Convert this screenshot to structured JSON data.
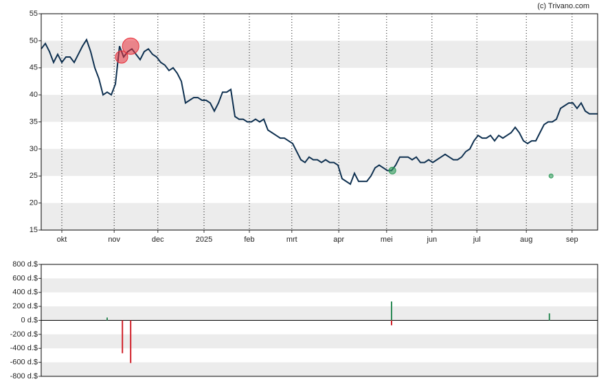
{
  "chart_data": [
    {
      "type": "line",
      "source": "(c) Trivano.com",
      "xlim": [
        0,
        135
      ],
      "xticks": [
        {
          "value": 5,
          "label": "okt"
        },
        {
          "value": 17.7,
          "label": "nov"
        },
        {
          "value": 28.3,
          "label": "dec"
        },
        {
          "value": 39.5,
          "label": "2025"
        },
        {
          "value": 50.5,
          "label": "feb"
        },
        {
          "value": 60.8,
          "label": "mrt"
        },
        {
          "value": 72.2,
          "label": "apr"
        },
        {
          "value": 83.8,
          "label": "mei"
        },
        {
          "value": 94.8,
          "label": "jun"
        },
        {
          "value": 105.7,
          "label": "jul"
        },
        {
          "value": 117.7,
          "label": "aug"
        },
        {
          "value": 128.8,
          "label": "sep"
        }
      ],
      "ylim": [
        15,
        55
      ],
      "yticks": [
        15,
        20,
        25,
        30,
        35,
        40,
        45,
        50,
        55
      ],
      "grid": true,
      "series": [
        {
          "color": "#0d2f4f",
          "values": [
            48.5,
            49.5,
            48,
            46,
            47.5,
            46,
            47,
            47,
            46,
            47.5,
            49,
            50.2,
            48,
            45,
            43,
            40,
            40.5,
            40,
            42,
            49,
            47,
            48,
            48.5,
            47.5,
            46.5,
            48,
            48.5,
            47.5,
            47,
            46,
            45.5,
            44.5,
            45,
            44,
            42.5,
            38.5,
            39,
            39.5,
            39.5,
            39,
            39,
            38.5,
            37,
            38.5,
            40.5,
            40.5,
            41,
            36,
            35.5,
            35.5,
            35,
            35,
            35.5,
            35,
            35.5,
            33.5,
            33,
            32.5,
            32,
            32,
            31.5,
            31,
            29.5,
            28,
            27.5,
            28.5,
            28,
            28,
            27.5,
            28,
            27.5,
            27.5,
            27,
            24.5,
            24,
            23.5,
            25.5,
            24,
            24,
            24,
            25,
            26.5,
            27,
            26.5,
            26,
            26,
            27,
            28.5,
            28.5,
            28.5,
            28,
            28.5,
            27.5,
            27.5,
            28,
            27.5,
            28,
            28.5,
            29,
            28.5,
            28,
            28,
            28.5,
            29.5,
            30,
            31.5,
            32.5,
            32,
            32,
            32.5,
            31.5,
            32.5,
            32,
            32.5,
            33,
            34,
            33,
            31.5,
            31,
            31.5,
            31.5,
            33,
            34.5,
            35,
            35,
            35.5,
            37.5,
            38,
            38.5,
            38.5,
            37.5,
            38.5,
            37,
            36.5,
            36.5,
            36.5
          ]
        }
      ],
      "markers": [
        {
          "x": 19.5,
          "y": 47,
          "color": "#e8303a"
        },
        {
          "x": 21.7,
          "y": 49,
          "color": "#e8303a"
        },
        {
          "x": 85.2,
          "y": 26,
          "color": "#2e9b5a"
        },
        {
          "x": 123.7,
          "y": 25,
          "color": "#2e9b5a"
        }
      ]
    },
    {
      "type": "bar",
      "xlim": [
        0,
        135
      ],
      "ylim": [
        -800,
        800
      ],
      "yticks": [
        {
          "value": -800,
          "label": "-800 d.$"
        },
        {
          "value": -600,
          "label": "-600 d.$"
        },
        {
          "value": -400,
          "label": "-400 d.$"
        },
        {
          "value": -200,
          "label": "-200 d.$"
        },
        {
          "value": 0,
          "label": "0 d.$"
        },
        {
          "value": 200,
          "label": "200 d.$"
        },
        {
          "value": 400,
          "label": "400 d.$"
        },
        {
          "value": 600,
          "label": "600 d.$"
        },
        {
          "value": 800,
          "label": "800 d.$"
        }
      ],
      "grid": true,
      "x": [
        16,
        19.7,
        21.7,
        85,
        85,
        123.3
      ],
      "values": [
        40,
        -470,
        -610,
        270,
        -70,
        100
      ],
      "positive_color": "#2e8b57",
      "negative_color": "#d0202a"
    }
  ]
}
